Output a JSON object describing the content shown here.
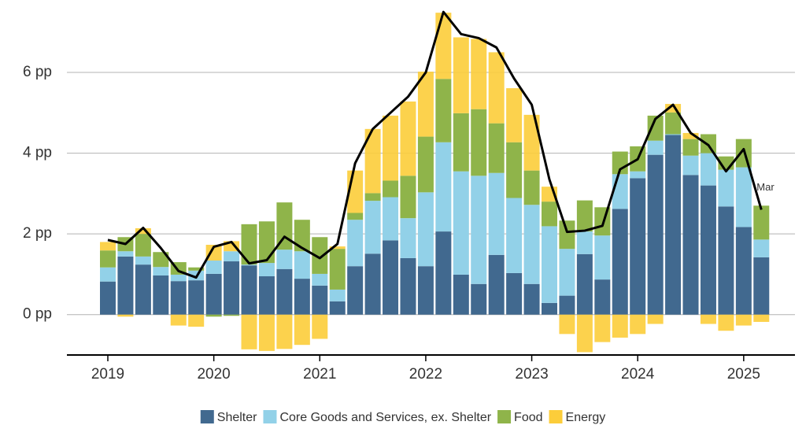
{
  "chart_data": {
    "type": "stacked-bar-line",
    "categories": [
      "2019",
      null,
      null,
      null,
      null,
      null,
      "2020",
      null,
      null,
      null,
      null,
      null,
      "2021",
      null,
      null,
      null,
      null,
      null,
      "2022",
      null,
      null,
      null,
      null,
      null,
      "2023",
      null,
      null,
      null,
      null,
      null,
      "2024",
      null,
      null,
      null,
      null,
      null,
      "2025",
      null
    ],
    "series": [
      {
        "name": "Shelter",
        "color": "#41698f",
        "values": [
          0.82,
          1.44,
          1.24,
          0.97,
          0.83,
          0.85,
          1.01,
          1.32,
          1.22,
          0.95,
          1.13,
          0.89,
          0.72,
          0.33,
          1.2,
          1.51,
          1.84,
          1.4,
          1.2,
          2.06,
          0.99,
          0.76,
          1.48,
          1.03,
          0.76,
          0.29,
          0.47,
          1.5,
          0.87,
          2.62,
          3.38,
          3.96,
          4.45,
          3.46,
          3.2,
          2.68,
          2.17,
          1.42
        ]
      },
      {
        "name": "Core Goods and Services, ex. Shelter",
        "color": "#92d1e8",
        "values": [
          0.35,
          0.13,
          0.2,
          0.21,
          0.16,
          0.24,
          0.33,
          0.25,
          0.02,
          0.33,
          0.48,
          0.68,
          0.29,
          0.29,
          1.15,
          1.31,
          1.07,
          0.99,
          1.83,
          2.21,
          2.56,
          2.68,
          2.03,
          1.86,
          1.96,
          1.9,
          1.16,
          0.56,
          1.09,
          0.86,
          0.17,
          0.35,
          0.02,
          0.48,
          0.8,
          0.91,
          1.48,
          0.44
        ]
      },
      {
        "name": "Food",
        "color": "#8fb44a",
        "values": [
          0.42,
          0.35,
          0.56,
          0.37,
          0.31,
          0.08,
          -0.05,
          -0.03,
          1.0,
          1.03,
          1.17,
          0.78,
          0.91,
          1.01,
          0.17,
          0.19,
          0.41,
          1.05,
          1.38,
          1.57,
          1.44,
          1.65,
          1.23,
          1.38,
          0.85,
          0.61,
          0.7,
          0.77,
          0.7,
          0.56,
          0.62,
          0.62,
          0.54,
          0.41,
          0.47,
          0.33,
          0.7,
          0.84
        ]
      },
      {
        "name": "Energy",
        "color": "#fccd3a",
        "values": [
          0.21,
          -0.05,
          0.14,
          0.0,
          -0.27,
          -0.3,
          0.39,
          0.25,
          -0.86,
          -0.9,
          -0.85,
          -0.75,
          -0.6,
          0.06,
          1.05,
          1.59,
          1.61,
          1.84,
          1.61,
          1.64,
          1.88,
          1.74,
          1.76,
          1.34,
          1.38,
          0.37,
          -0.48,
          -0.93,
          -0.68,
          -0.57,
          -0.48,
          -0.23,
          0.21,
          0.15,
          -0.23,
          -0.4,
          -0.27,
          -0.18
        ]
      }
    ],
    "line": {
      "color": "#000000",
      "values": [
        1.85,
        1.75,
        2.15,
        1.65,
        1.08,
        0.92,
        1.68,
        1.8,
        1.27,
        1.35,
        1.93,
        1.65,
        1.4,
        1.75,
        3.75,
        4.6,
        5.0,
        5.4,
        6.0,
        7.5,
        6.95,
        6.85,
        6.62,
        5.85,
        5.2,
        3.35,
        2.05,
        2.08,
        2.2,
        3.6,
        3.85,
        4.85,
        5.2,
        4.5,
        4.2,
        3.55,
        4.1,
        2.6
      ]
    },
    "annotation": "Mar",
    "ylim": [
      -1,
      7.6
    ],
    "yticks": [
      {
        "value": 0,
        "label": "0 pp"
      },
      {
        "value": 2,
        "label": "2 pp"
      },
      {
        "value": 4,
        "label": "4 pp"
      },
      {
        "value": 6,
        "label": "6 pp"
      }
    ],
    "grid": true
  }
}
